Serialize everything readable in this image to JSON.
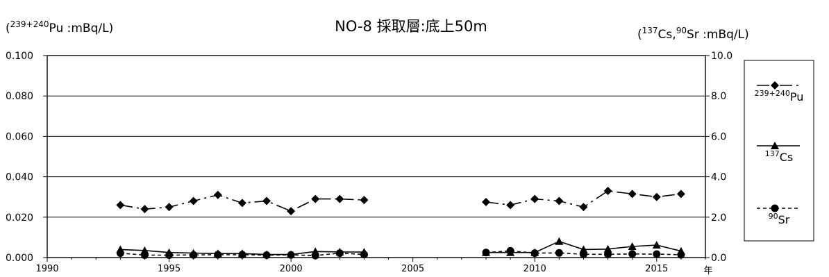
{
  "chart_data": {
    "type": "line",
    "title": "NO-8 採取層:底上50m",
    "left_unit": {
      "base": "(",
      "sup": "239+240",
      "text": "Pu :mBq/L)"
    },
    "right_unit": [
      {
        "kind": "text",
        "value": "("
      },
      {
        "kind": "sup",
        "value": "137"
      },
      {
        "kind": "text",
        "value": "Cs,"
      },
      {
        "kind": "sup",
        "value": "90"
      },
      {
        "kind": "text",
        "value": "Sr :mBq/L)"
      }
    ],
    "x_axis_unit": "年",
    "xlim": [
      1990,
      2017
    ],
    "x_ticks": [
      1990,
      1995,
      2000,
      2005,
      2010,
      2015
    ],
    "left_ylim": [
      0,
      0.1
    ],
    "left_ticks": [
      "0.000",
      "0.020",
      "0.040",
      "0.060",
      "0.080",
      "0.100"
    ],
    "right_ylim": [
      0,
      10
    ],
    "right_ticks": [
      "0.0",
      "2.0",
      "4.0",
      "6.0",
      "8.0",
      "10.0"
    ],
    "grid": true,
    "legend_position": "right",
    "series": [
      {
        "key": "pu",
        "axis": "left",
        "marker": "diamond",
        "dash": "18,6,3,6",
        "legend_sup": "239+240",
        "legend_text": "Pu",
        "segments": [
          [
            [
              1993,
              0.026
            ],
            [
              1994,
              0.024
            ],
            [
              1995,
              0.025
            ],
            [
              1996,
              0.028
            ],
            [
              1997,
              0.031
            ],
            [
              1998,
              0.027
            ],
            [
              1999,
              0.028
            ],
            [
              2000,
              0.023
            ],
            [
              2001,
              0.029
            ],
            [
              2002,
              0.029
            ],
            [
              2003,
              0.0285
            ]
          ],
          [
            [
              2008,
              0.0275
            ],
            [
              2009,
              0.026
            ],
            [
              2010,
              0.029
            ],
            [
              2011,
              0.028
            ],
            [
              2012,
              0.025
            ],
            [
              2013,
              0.033
            ],
            [
              2014,
              0.0315
            ],
            [
              2015,
              0.03
            ],
            [
              2016,
              0.0315
            ]
          ]
        ]
      },
      {
        "key": "cs",
        "axis": "right",
        "marker": "triangle",
        "dash": "",
        "legend_sup": "137",
        "legend_text": "Cs",
        "segments": [
          [
            [
              1993,
              0.4
            ],
            [
              1994,
              0.35
            ],
            [
              1995,
              0.25
            ],
            [
              1996,
              0.22
            ],
            [
              1997,
              0.2
            ],
            [
              1998,
              0.2
            ],
            [
              1999,
              0.15
            ],
            [
              2000,
              0.15
            ],
            [
              2001,
              0.3
            ],
            [
              2002,
              0.28
            ],
            [
              2003,
              0.27
            ]
          ],
          [
            [
              2008,
              0.25
            ],
            [
              2009,
              0.25
            ],
            [
              2010,
              0.25
            ],
            [
              2011,
              0.8
            ],
            [
              2012,
              0.4
            ],
            [
              2013,
              0.42
            ],
            [
              2014,
              0.55
            ],
            [
              2015,
              0.62
            ],
            [
              2016,
              0.32
            ]
          ]
        ]
      },
      {
        "key": "sr",
        "axis": "right",
        "marker": "circle",
        "dash": "5,4",
        "legend_sup": "90",
        "legend_text": "Sr",
        "segments": [
          [
            [
              1993,
              0.22
            ],
            [
              1994,
              0.12
            ],
            [
              1995,
              0.12
            ],
            [
              1996,
              0.13
            ],
            [
              1997,
              0.14
            ],
            [
              1998,
              0.14
            ],
            [
              1999,
              0.12
            ],
            [
              2000,
              0.13
            ],
            [
              2001,
              0.1
            ],
            [
              2002,
              0.22
            ],
            [
              2003,
              0.15
            ]
          ],
          [
            [
              2008,
              0.25
            ],
            [
              2009,
              0.33
            ],
            [
              2010,
              0.22
            ],
            [
              2011,
              0.23
            ],
            [
              2012,
              0.16
            ],
            [
              2013,
              0.16
            ],
            [
              2014,
              0.18
            ],
            [
              2015,
              0.17
            ],
            [
              2016,
              0.14
            ]
          ]
        ]
      }
    ]
  }
}
